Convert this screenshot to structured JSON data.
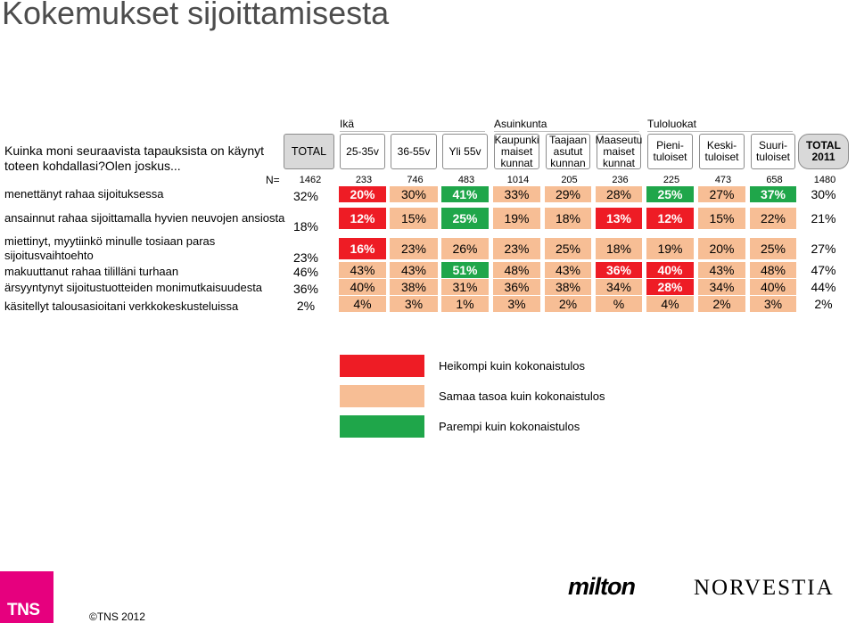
{
  "title": "Kokemukset sijoittamisesta",
  "question": "Kuinka moni seuraavista tapauksista on käynyt toteen kohdallasi?Olen joskus...",
  "groups": {
    "age": "Ikä",
    "municipality": "Asuinkunta",
    "income": "Tuloluokat"
  },
  "n_label": "N=",
  "colors": {
    "worse": "#ee1c25",
    "same": "#f7be95",
    "better": "#1fa64a"
  },
  "chart_data": {
    "type": "table",
    "title": "Kokemukset sijoittamisesta",
    "columns": [
      {
        "label": "TOTAL",
        "n": "1462"
      },
      {
        "label": "25-35v",
        "n": "233"
      },
      {
        "label": "36-55v",
        "n": "746"
      },
      {
        "label": "Yli 55v",
        "n": "483"
      },
      {
        "label": "Kaupunki maiset kunnat",
        "n": "1014"
      },
      {
        "label": "Taajaan asutut kunnan",
        "n": "205"
      },
      {
        "label": "Maaseutu maiset kunnat",
        "n": "236"
      },
      {
        "label": "Pieni- tuloiset",
        "n": "225"
      },
      {
        "label": "Keski- tuloiset",
        "n": "473"
      },
      {
        "label": "Suuri- tuloiset",
        "n": "658"
      },
      {
        "label": "TOTAL 2011",
        "n": "1480"
      }
    ],
    "rows": [
      {
        "label": "menettänyt rahaa sijoituksessa",
        "values": [
          "32%",
          "20%",
          "30%",
          "41%",
          "33%",
          "29%",
          "28%",
          "25%",
          "27%",
          "37%",
          "30%"
        ],
        "colors": [
          "none",
          "worse",
          "same",
          "better",
          "same",
          "same",
          "same",
          "better",
          "same",
          "better",
          "none"
        ]
      },
      {
        "label": "ansainnut rahaa sijoittamalla hyvien neuvojen ansiosta",
        "values": [
          "18%",
          "12%",
          "15%",
          "25%",
          "19%",
          "18%",
          "13%",
          "12%",
          "15%",
          "22%",
          "21%"
        ],
        "colors": [
          "none",
          "worse",
          "same",
          "better",
          "same",
          "same",
          "worse",
          "worse",
          "same",
          "same",
          "none"
        ]
      },
      {
        "label": "miettinyt, myytiinkö minulle tosiaan paras sijoitusvaihtoehto",
        "values": [
          "23%",
          "16%",
          "23%",
          "26%",
          "23%",
          "25%",
          "18%",
          "19%",
          "20%",
          "25%",
          "27%"
        ],
        "colors": [
          "none",
          "worse",
          "same",
          "same",
          "same",
          "same",
          "same",
          "same",
          "same",
          "same",
          "none"
        ]
      },
      {
        "label": "makuuttanut rahaa tililläni turhaan",
        "values": [
          "46%",
          "43%",
          "43%",
          "51%",
          "48%",
          "43%",
          "36%",
          "40%",
          "43%",
          "48%",
          "47%"
        ],
        "colors": [
          "none",
          "same",
          "same",
          "better",
          "same",
          "same",
          "worse",
          "worse",
          "same",
          "same",
          "none"
        ]
      },
      {
        "label": "ärsyyntynyt sijoitustuotteiden monimutkaisuudesta",
        "values": [
          "36%",
          "40%",
          "38%",
          "31%",
          "36%",
          "38%",
          "34%",
          "28%",
          "34%",
          "40%",
          "44%"
        ],
        "colors": [
          "none",
          "same",
          "same",
          "same",
          "same",
          "same",
          "same",
          "worse",
          "same",
          "same",
          "none"
        ]
      },
      {
        "label": "käsitellyt talousasioitani verkkokeskusteluissa",
        "values": [
          "2%",
          "4%",
          "3%",
          "1%",
          "3%",
          "2%",
          "%",
          "4%",
          "2%",
          "3%",
          "2%"
        ],
        "colors": [
          "none",
          "same",
          "same",
          "same",
          "same",
          "same",
          "same",
          "same",
          "same",
          "same",
          "none"
        ]
      }
    ],
    "legend": [
      {
        "key": "worse",
        "label": "Heikompi kuin kokonaistulos"
      },
      {
        "key": "same",
        "label": "Samaa tasoa kuin kokonaistulos"
      },
      {
        "key": "better",
        "label": "Parempi kuin kokonaistulos"
      }
    ]
  },
  "footer": {
    "tns": "TNS",
    "copyright": "©TNS 2012",
    "logo_milton": "milton",
    "logo_norvestia": "NORVESTIA"
  }
}
